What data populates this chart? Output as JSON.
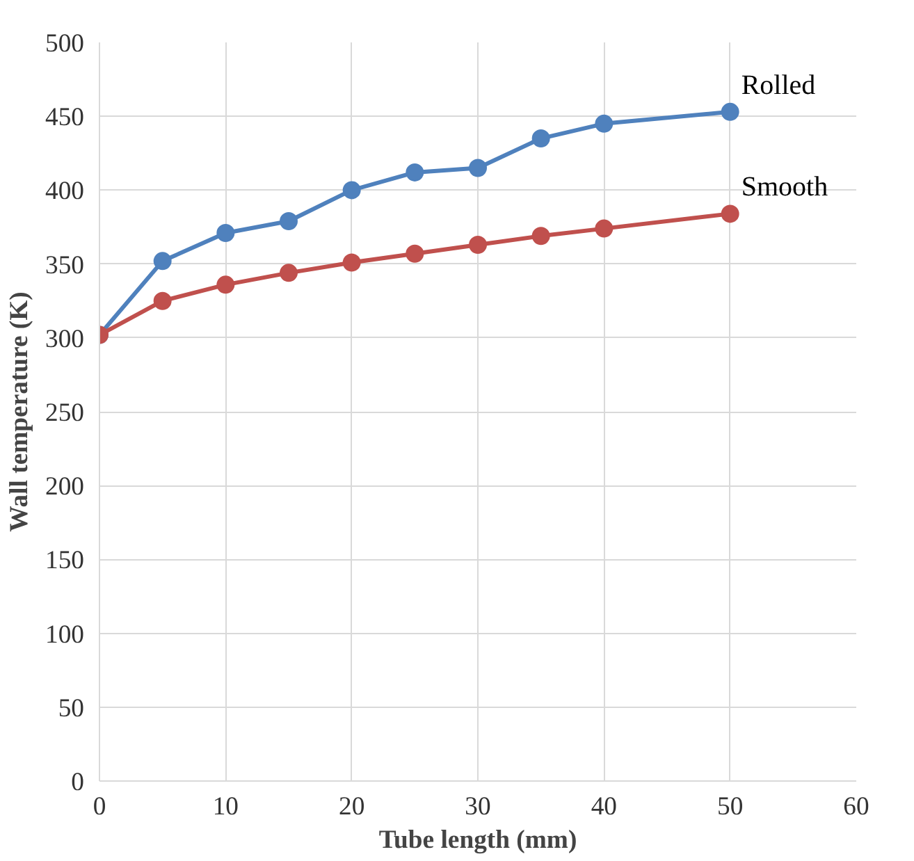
{
  "chart_data": {
    "type": "line",
    "xlabel": "Tube length (mm)",
    "ylabel": "Wall temperature (K)",
    "x": [
      0,
      5,
      10,
      15,
      20,
      25,
      30,
      35,
      40,
      50
    ],
    "series": [
      {
        "name": "Rolled",
        "color": "#4f81bd",
        "values": [
          302,
          352,
          371,
          379,
          400,
          412,
          415,
          435,
          445,
          453
        ]
      },
      {
        "name": "Smooth",
        "color": "#c0504d",
        "values": [
          302,
          325,
          336,
          344,
          351,
          357,
          363,
          369,
          374,
          384
        ]
      }
    ],
    "xlim": [
      0,
      60
    ],
    "xticks": [
      0,
      10,
      20,
      30,
      40,
      50,
      60
    ],
    "ylim": [
      0,
      500
    ],
    "yticks": [
      0,
      50,
      100,
      150,
      200,
      250,
      300,
      350,
      400,
      450,
      500
    ],
    "grid": true,
    "legend": false,
    "marker": "circle",
    "line_style": "solid"
  }
}
